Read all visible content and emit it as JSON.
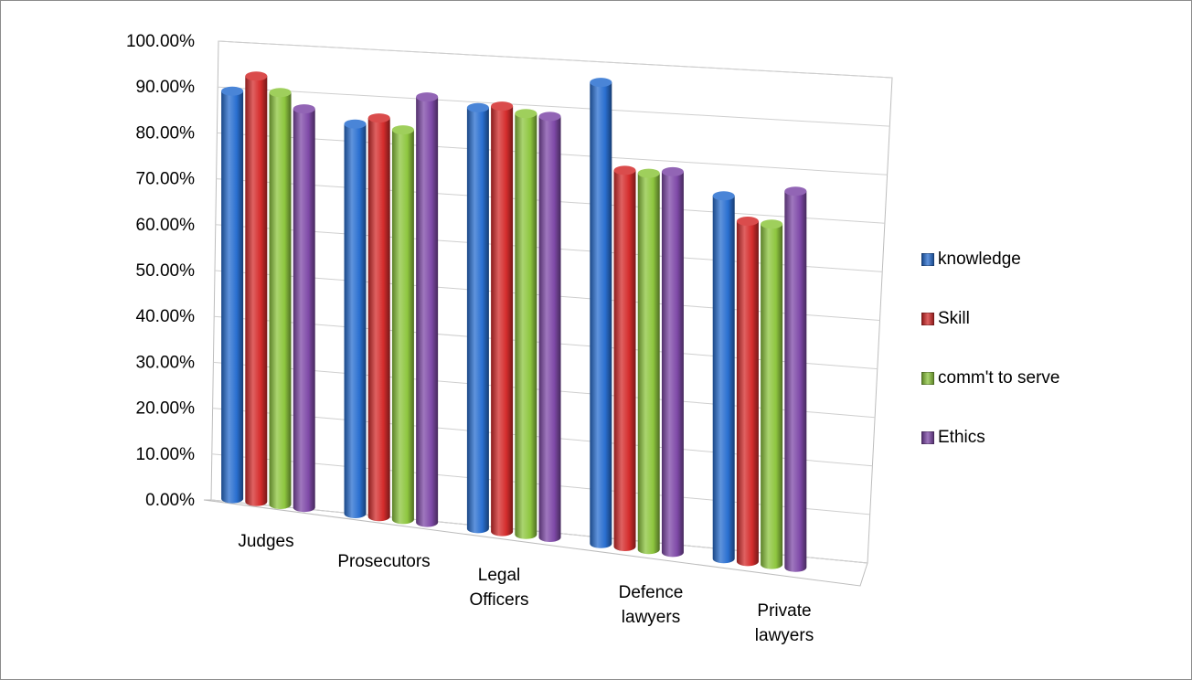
{
  "chart_data": {
    "type": "bar",
    "categories": [
      "Judges",
      "Prosecutors",
      "Legal Officers",
      "Defence lawyers",
      "Private lawyers"
    ],
    "category_lines": [
      [
        "Judges"
      ],
      [
        "Prosecutors"
      ],
      [
        "Legal",
        "Officers"
      ],
      [
        "Defence",
        "lawyers"
      ],
      [
        "Private",
        "lawyers"
      ]
    ],
    "series": [
      {
        "name": "knowledge",
        "color": "#2a6fd0",
        "values": [
          0.91,
          0.87,
          0.94,
          1.03,
          0.81
        ]
      },
      {
        "name": "Skill",
        "color": "#d42c2c",
        "values": [
          0.95,
          0.89,
          0.95,
          0.84,
          0.76
        ]
      },
      {
        "name": "comm't to serve",
        "color": "#8ec63f",
        "values": [
          0.92,
          0.87,
          0.94,
          0.84,
          0.76
        ]
      },
      {
        "name": "Ethics",
        "color": "#7f4aa8",
        "values": [
          0.89,
          0.95,
          0.94,
          0.85,
          0.84
        ]
      }
    ],
    "y_ticks": [
      "0.00%",
      "10.00%",
      "20.00%",
      "30.00%",
      "40.00%",
      "50.00%",
      "60.00%",
      "70.00%",
      "80.00%",
      "90.00%",
      "100.00%"
    ],
    "ylim": [
      0,
      1.0
    ],
    "grid": true,
    "legend": "right"
  }
}
